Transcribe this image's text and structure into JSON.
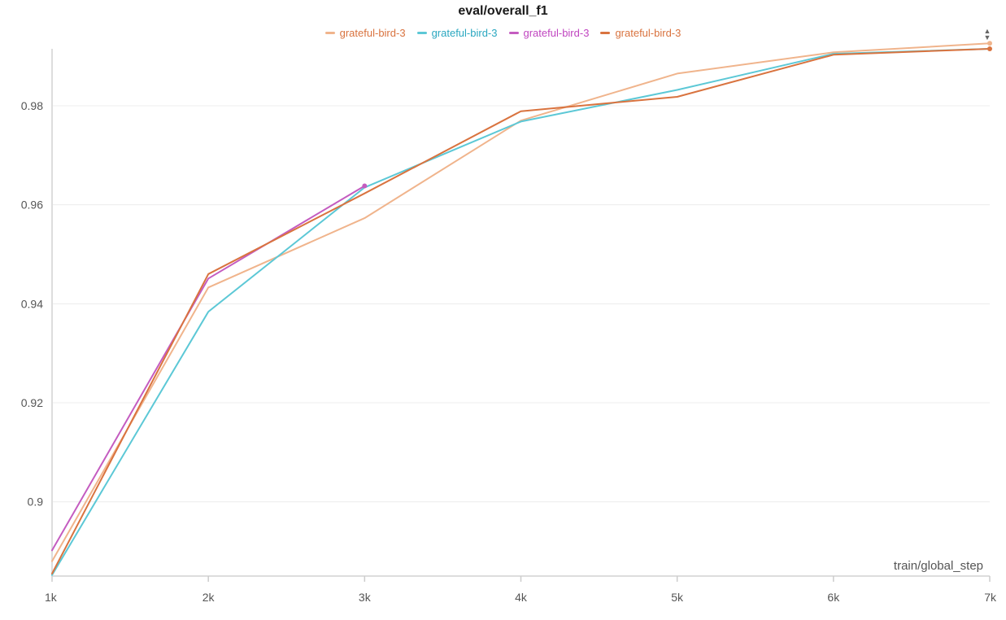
{
  "chart_data": {
    "type": "line",
    "title": "eval/overall_f1",
    "xlabel": "train/global_step",
    "ylabel": "",
    "xlim": [
      1000,
      7000
    ],
    "ylim": [
      0.885,
      0.9915
    ],
    "x_ticks": [
      1000,
      2000,
      3000,
      4000,
      5000,
      6000,
      7000
    ],
    "x_tick_labels": [
      "1k",
      "2k",
      "3k",
      "4k",
      "5k",
      "6k",
      "7k"
    ],
    "y_ticks": [
      0.9,
      0.92,
      0.94,
      0.96,
      0.98
    ],
    "y_tick_labels": [
      "0.9",
      "0.92",
      "0.94",
      "0.96",
      "0.98"
    ],
    "grid": true,
    "legend_position": "top-center",
    "series": [
      {
        "name": "grateful-bird-3",
        "color": "#f0b48c",
        "end_marker": true,
        "x": [
          1000,
          2000,
          3000,
          4000,
          5000,
          6000,
          7000
        ],
        "y": [
          0.888,
          0.9433,
          0.9573,
          0.977,
          0.9865,
          0.9908,
          0.9926
        ]
      },
      {
        "name": "grateful-bird-3",
        "color": "#5cc8d6",
        "end_marker": false,
        "x": [
          1000,
          2000,
          3000,
          4000,
          5000,
          6000,
          7000
        ],
        "y": [
          0.8852,
          0.9384,
          0.9635,
          0.9768,
          0.9832,
          0.9905,
          0.9915
        ]
      },
      {
        "name": "grateful-bird-3",
        "color": "#c45cc0",
        "end_marker": true,
        "x": [
          1000,
          2000,
          3000
        ],
        "y": [
          0.8902,
          0.9451,
          0.9638
        ]
      },
      {
        "name": "grateful-bird-3",
        "color": "#d9733f",
        "end_marker": true,
        "x": [
          1000,
          2000,
          3000,
          4000,
          5000,
          6000,
          7000
        ],
        "y": [
          0.8855,
          0.946,
          0.9623,
          0.9789,
          0.9818,
          0.9903,
          0.9915
        ]
      }
    ]
  },
  "legend_text_colors": [
    "#d9733f",
    "#2aa7c0",
    "#c045c0",
    "#d9733f"
  ],
  "controls": {
    "sort_up": "▲",
    "sort_down": "▼"
  }
}
